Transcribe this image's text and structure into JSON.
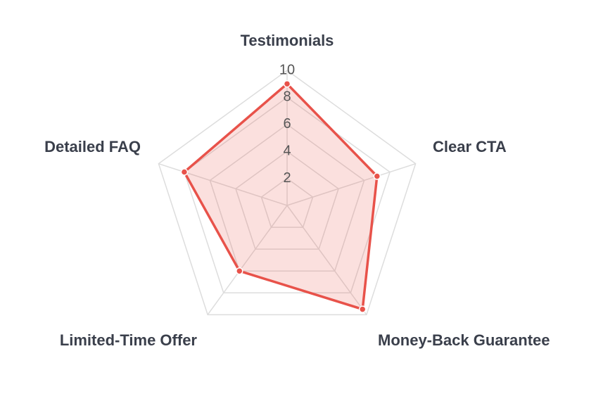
{
  "chart_data": {
    "type": "radar",
    "categories": [
      "Testimonials",
      "Clear CTA",
      "Money-Back Guarantee",
      "Limited-Time Offer",
      "Detailed FAQ"
    ],
    "values": [
      9,
      7,
      9.5,
      6,
      8
    ],
    "color": "#e8524a",
    "ylim": [
      0,
      10
    ],
    "yticks": [
      2,
      4,
      6,
      8,
      10
    ],
    "grid": true
  }
}
